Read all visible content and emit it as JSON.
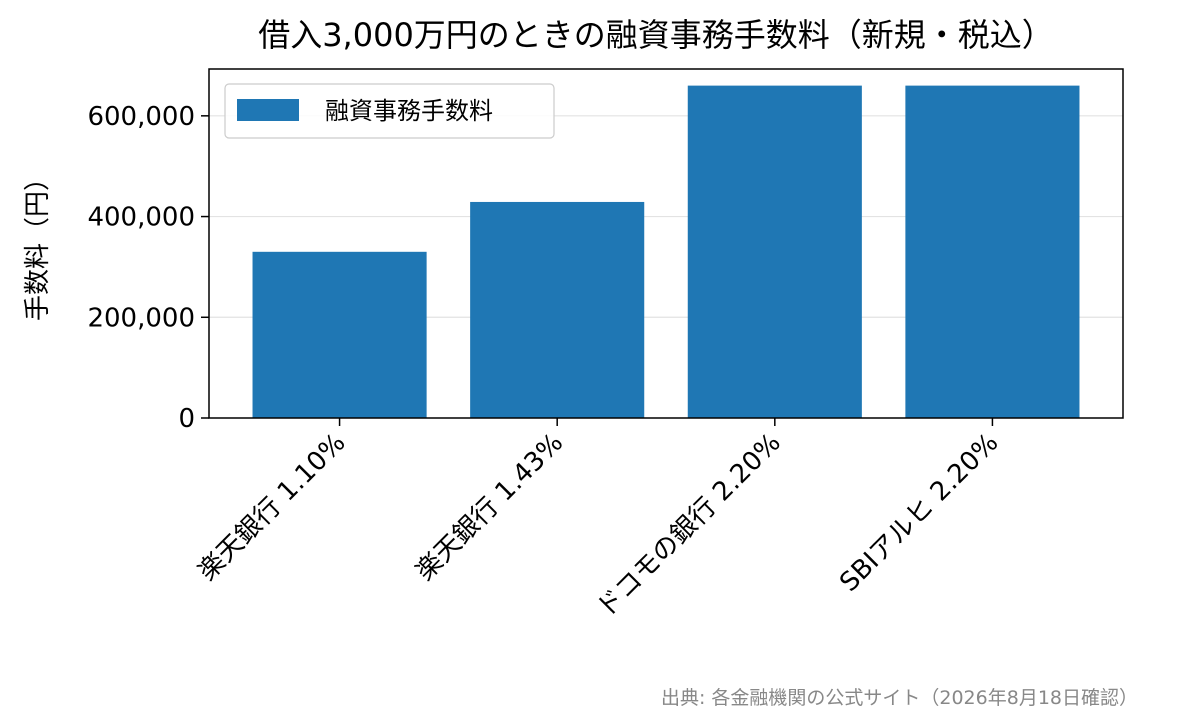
{
  "chart_data": {
    "type": "bar",
    "title": "借入3,000万円のときの融資事務手数料（新規・税込）",
    "xlabel": "",
    "ylabel": "手数料（円）",
    "categories": [
      "楽天銀行 1.10%",
      "楽天銀行 1.43%",
      "ドコモの銀行 2.20%",
      "SBIアルヒ 2.20%"
    ],
    "series": [
      {
        "name": "融資事務手数料",
        "values": [
          330000,
          429000,
          660000,
          660000
        ],
        "color": "#1f77b4"
      }
    ],
    "ylim": [
      0,
      693000
    ],
    "yticks": [
      0,
      200000,
      400000,
      600000
    ],
    "ytick_labels": [
      "0",
      "200,000",
      "400,000",
      "600,000"
    ],
    "grid": "horizontal",
    "legend_position": "top-left"
  },
  "source_note": "出典: 各金融機関の公式サイト（2026年8月18日確認）"
}
